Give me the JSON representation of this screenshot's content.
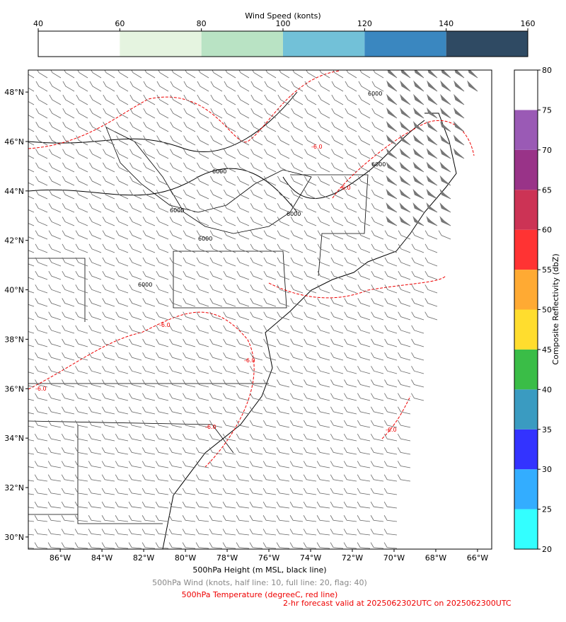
{
  "top_colorbar": {
    "label": "Wind Speed (konts)",
    "lim": [
      40,
      160
    ],
    "ticks": [
      40,
      60,
      80,
      100,
      120,
      140,
      160
    ],
    "colors": [
      "#ffffff",
      "#e5f4e0",
      "#b9e3c4",
      "#72c1d8",
      "#3a87c0",
      "#2f4a63"
    ]
  },
  "right_colorbar": {
    "label": "Composite Reflectivity (dbZ)",
    "lim": [
      20,
      80
    ],
    "ticks": [
      20,
      25,
      30,
      35,
      40,
      45,
      50,
      55,
      60,
      65,
      70,
      75,
      80
    ],
    "colors": [
      "#33ffff",
      "#33adff",
      "#3333ff",
      "#3a9bc1",
      "#3abd47",
      "#ffdd2e",
      "#ffaa33",
      "#ff3333",
      "#cc3355",
      "#993388",
      "#9a5ab5",
      "#ffffff"
    ]
  },
  "map": {
    "xlim": [
      -87.53,
      -65.32
    ],
    "ylim": [
      29.51,
      48.89
    ],
    "xticks": [
      {
        "value": -86,
        "label": "86°W"
      },
      {
        "value": -84,
        "label": "84°W"
      },
      {
        "value": -82,
        "label": "82°W"
      },
      {
        "value": -80,
        "label": "80°W"
      },
      {
        "value": -78,
        "label": "78°W"
      },
      {
        "value": -76,
        "label": "76°W"
      },
      {
        "value": -74,
        "label": "74°W"
      },
      {
        "value": -72,
        "label": "72°W"
      },
      {
        "value": -70,
        "label": "70°W"
      },
      {
        "value": -68,
        "label": "68°W"
      },
      {
        "value": -66,
        "label": "66°W"
      }
    ],
    "yticks": [
      {
        "value": 30,
        "label": "30°N"
      },
      {
        "value": 32,
        "label": "32°N"
      },
      {
        "value": 34,
        "label": "34°N"
      },
      {
        "value": 36,
        "label": "36°N"
      },
      {
        "value": 38,
        "label": "38°N"
      },
      {
        "value": 40,
        "label": "40°N"
      },
      {
        "value": 42,
        "label": "42°N"
      },
      {
        "value": 44,
        "label": "44°N"
      },
      {
        "value": 46,
        "label": "46°N"
      },
      {
        "value": 48,
        "label": "48°N"
      }
    ],
    "height_contour_label": "6000",
    "temperature_contour_label": "-6.0"
  },
  "footer": {
    "height": "500hPa Height (m MSL, black line)",
    "wind": "500hPa Wind (knots, half line: 10, full line: 20, flag: 40)",
    "temperature": "500hPa Temperature (degreeC, red line)",
    "valid": "2-hr forecast valid at 2025062302UTC on 2025062300UTC"
  }
}
